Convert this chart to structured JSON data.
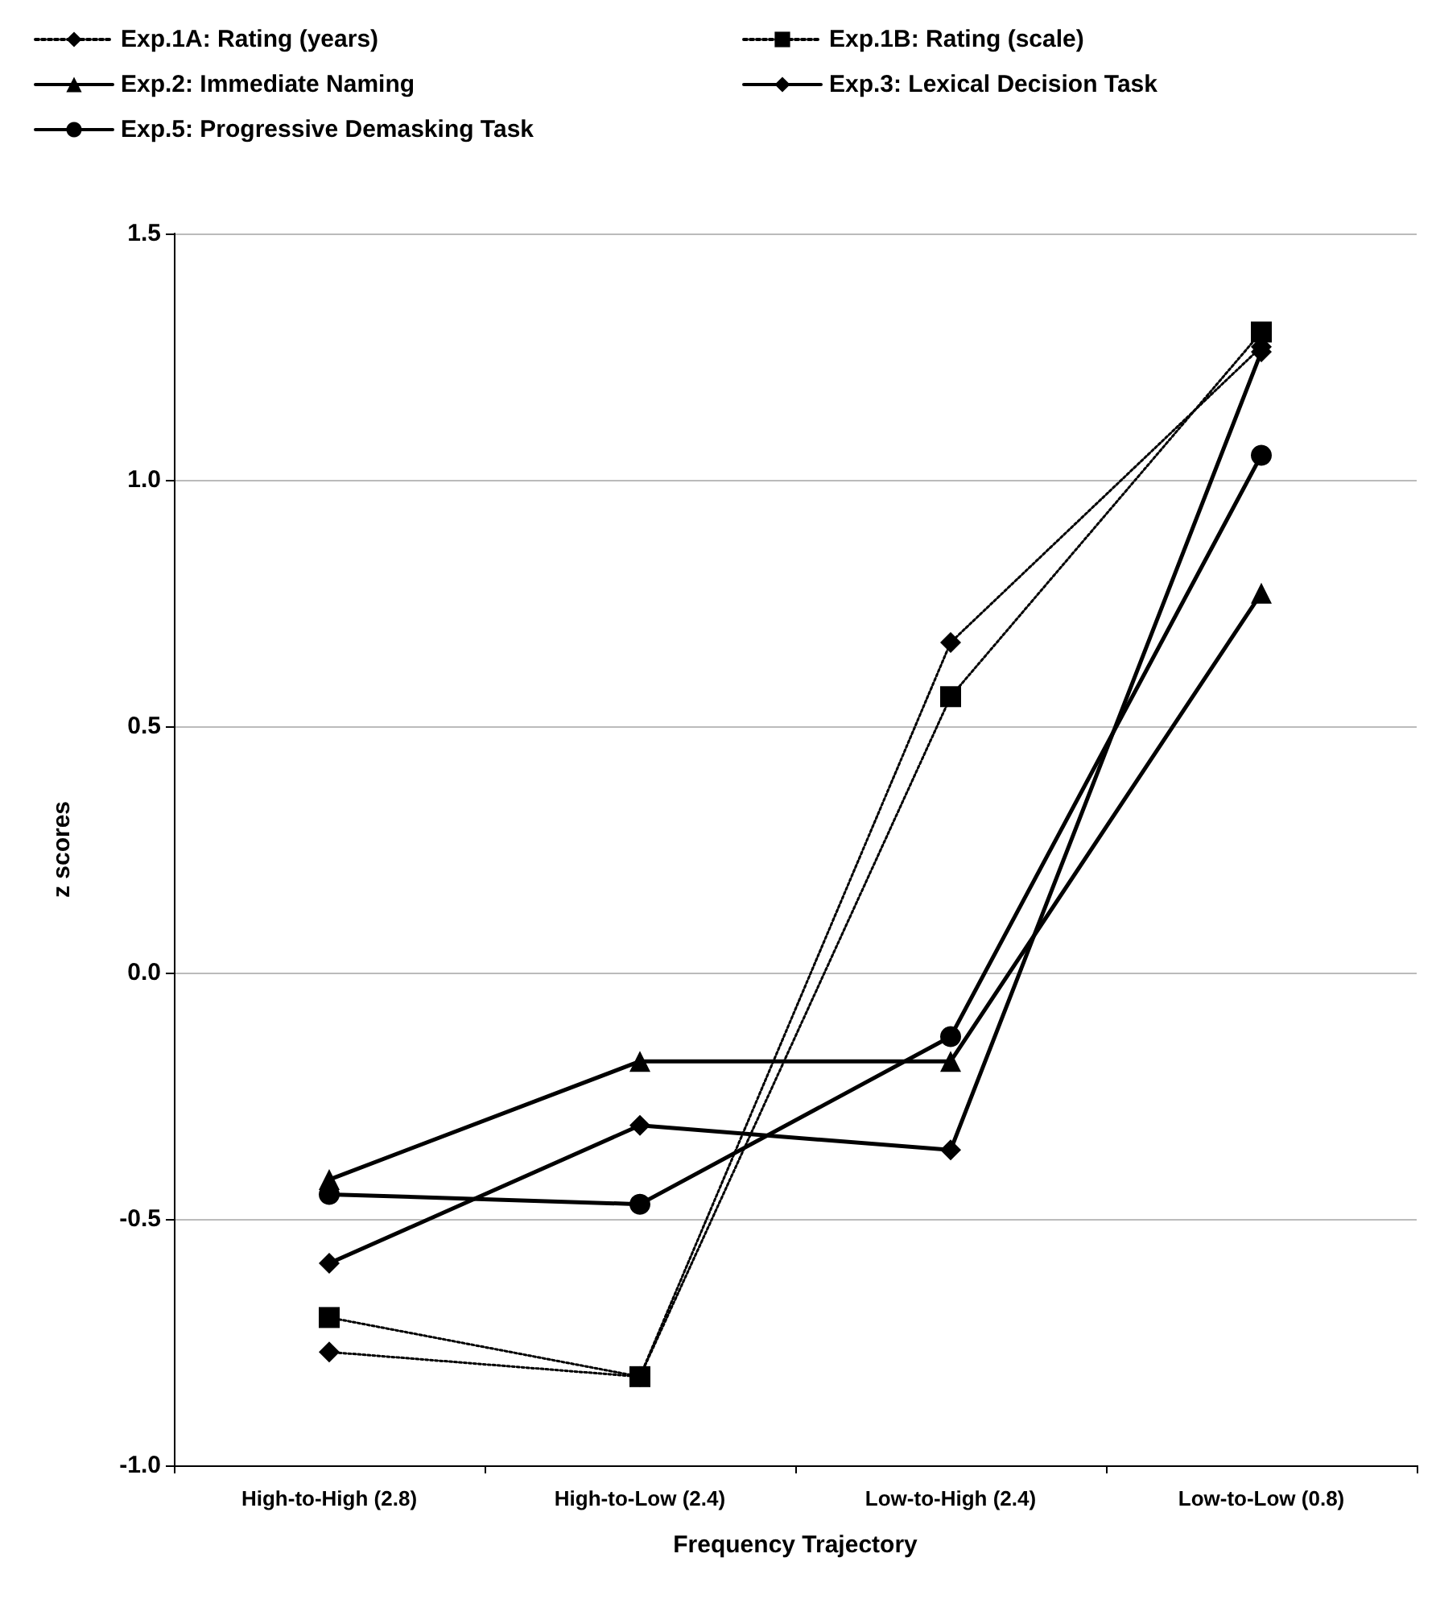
{
  "chart_data": {
    "type": "line",
    "xlabel": "Frequency Trajectory",
    "ylabel": "z scores",
    "categories": [
      "High-to-High (2.8)",
      "High-to-Low (2.4)",
      "Low-to-High (2.4)",
      "Low-to-Low (0.8)"
    ],
    "series": [
      {
        "name": "Exp.1A: Rating (years)",
        "color": "#000000",
        "marker": "diamond",
        "line_style": "dotted",
        "values": [
          -0.77,
          -0.82,
          0.67,
          1.27
        ]
      },
      {
        "name": "Exp.1B: Rating (scale)",
        "color": "#000000",
        "marker": "square",
        "line_style": "dotted",
        "values": [
          -0.7,
          -0.82,
          0.56,
          1.3
        ]
      },
      {
        "name": "Exp.2: Immediate Naming",
        "color": "#000000",
        "marker": "triangle",
        "line_style": "solid",
        "values": [
          -0.42,
          -0.18,
          -0.18,
          0.77
        ]
      },
      {
        "name": "Exp.3: Lexical Decision Task",
        "color": "#000000",
        "marker": "diamond",
        "line_style": "solid",
        "values": [
          -0.59,
          -0.31,
          -0.36,
          1.26
        ]
      },
      {
        "name": "Exp.5: Progressive Demasking Task",
        "color": "#000000",
        "marker": "circle",
        "line_style": "solid",
        "values": [
          -0.45,
          -0.47,
          -0.13,
          1.05
        ]
      }
    ],
    "ylim": [
      -1.0,
      1.5
    ],
    "yticks": [
      {
        "value": -1,
        "label": "-1.0"
      },
      -0.5,
      {
        "value": 0,
        "label": "0.0"
      },
      0.5,
      {
        "value": 1,
        "label": "1.0"
      },
      1.5
    ],
    "grid": "y",
    "legend": "top left"
  }
}
